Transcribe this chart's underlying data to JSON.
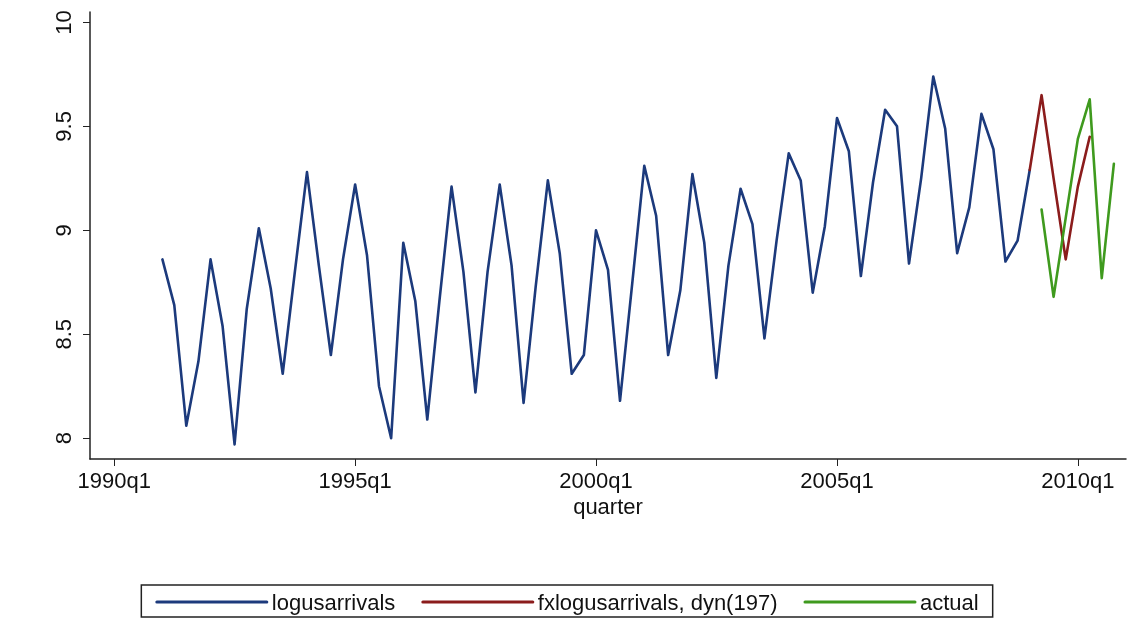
{
  "chart_data": {
    "type": "line",
    "xlabel": "quarter",
    "xlim": [
      "1989-07",
      "2011-01"
    ],
    "xticks": [
      {
        "value": "1990-01",
        "label": "1990q1"
      },
      {
        "value": "1995-01",
        "label": "1995q1"
      },
      {
        "value": "2000-01",
        "label": "2000q1"
      },
      {
        "value": "2005-01",
        "label": "2005q1"
      },
      {
        "value": "2010-01",
        "label": "2010q1"
      }
    ],
    "ylim": [
      7.9,
      10.05
    ],
    "yticks": [
      8,
      8.5,
      9,
      9.5,
      10
    ],
    "grid": false,
    "legend": "bottom",
    "marker": "none",
    "line_style": "solid",
    "series": [
      {
        "name": "logusarrivals",
        "color": "#1c3a7c",
        "x": [
          "1991-01",
          "1991-04",
          "1991-07",
          "1991-10",
          "1992-01",
          "1992-04",
          "1992-07",
          "1992-10",
          "1993-01",
          "1993-04",
          "1993-07",
          "1993-10",
          "1994-01",
          "1994-04",
          "1994-07",
          "1994-10",
          "1995-01",
          "1995-04",
          "1995-07",
          "1995-10",
          "1996-01",
          "1996-04",
          "1996-07",
          "1996-10",
          "1997-01",
          "1997-04",
          "1997-07",
          "1997-10",
          "1998-01",
          "1998-04",
          "1998-07",
          "1998-10",
          "1999-01",
          "1999-04",
          "1999-07",
          "1999-10",
          "2000-01",
          "2000-04",
          "2000-07",
          "2000-10",
          "2001-01",
          "2001-04",
          "2001-07",
          "2001-10",
          "2002-01",
          "2002-04",
          "2002-07",
          "2002-10",
          "2003-01",
          "2003-04",
          "2003-07",
          "2003-10",
          "2004-01",
          "2004-04",
          "2004-07",
          "2004-10",
          "2005-01",
          "2005-04",
          "2005-07",
          "2005-10",
          "2006-01",
          "2006-04",
          "2006-07",
          "2006-10",
          "2007-01",
          "2007-04",
          "2007-07",
          "2007-10",
          "2008-01",
          "2008-04",
          "2008-07",
          "2008-10",
          "2009-01"
        ],
        "values": [
          8.86,
          8.64,
          8.06,
          8.37,
          8.86,
          8.54,
          7.97,
          8.62,
          9.01,
          8.72,
          8.31,
          8.8,
          9.28,
          8.83,
          8.4,
          8.86,
          9.22,
          8.88,
          8.25,
          8.0,
          8.94,
          8.66,
          8.09,
          8.66,
          9.21,
          8.8,
          8.22,
          8.8,
          9.22,
          8.83,
          8.17,
          8.73,
          9.24,
          8.89,
          8.31,
          8.4,
          9.0,
          8.81,
          8.18,
          8.74,
          9.31,
          9.07,
          8.4,
          8.71,
          9.27,
          8.94,
          8.29,
          8.83,
          9.2,
          9.03,
          8.48,
          8.95,
          9.37,
          9.24,
          8.7,
          9.02,
          9.54,
          9.38,
          8.78,
          9.23,
          9.58,
          9.5,
          8.84,
          9.25,
          9.74,
          9.49,
          8.89,
          9.11,
          9.56,
          9.39,
          8.85,
          8.95,
          9.29
        ]
      },
      {
        "name": "fxlogusarrivals, dyn(197)",
        "color": "#8b1c1c",
        "x": [
          "2009-01",
          "2009-04",
          "2009-07",
          "2009-10",
          "2010-01",
          "2010-04"
        ],
        "values": [
          9.29,
          9.65,
          9.25,
          8.86,
          9.21,
          9.45
        ]
      },
      {
        "name": "actual",
        "color": "#3f9a1e",
        "x": [
          "2009-04",
          "2009-07",
          "2009-10",
          "2010-01",
          "2010-04",
          "2010-07",
          "2010-10"
        ],
        "values": [
          9.1,
          8.68,
          9.06,
          9.44,
          9.63,
          8.77,
          9.32
        ]
      }
    ]
  }
}
